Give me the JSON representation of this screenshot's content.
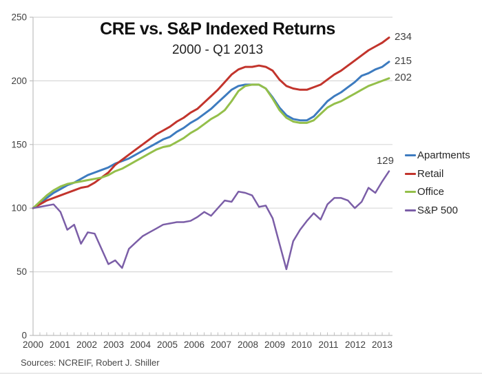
{
  "header": {
    "title": "CRE vs. S&P Indexed Returns",
    "subtitle": "2000 - Q1 2013"
  },
  "footer": {
    "source": "Sources: NCREIF, Robert J. Shiller"
  },
  "legend": {
    "position": "right",
    "items": [
      {
        "label": "Apartments",
        "color": "#3D7BBF"
      },
      {
        "label": "Retail",
        "color": "#C2342C"
      },
      {
        "label": "Office",
        "color": "#94BF4A"
      },
      {
        "label": "S&P 500",
        "color": "#7B5EA7"
      }
    ]
  },
  "end_labels": [
    {
      "series": "Retail",
      "value": "234"
    },
    {
      "series": "Apartments",
      "value": "215"
    },
    {
      "series": "Office",
      "value": "202"
    },
    {
      "series": "S&P 500",
      "value": "129"
    }
  ],
  "chart_data": {
    "type": "line",
    "title": "CRE vs. S&P Indexed Returns",
    "subtitle": "2000 - Q1 2013",
    "x_unit": "quarterly",
    "x_start": "2000 Q1",
    "x_end": "2013 Q1",
    "x_tick_labels": [
      "2000",
      "2001",
      "2002",
      "2003",
      "2004",
      "2005",
      "2006",
      "2007",
      "2008",
      "2009",
      "2010",
      "2011",
      "2012",
      "2013"
    ],
    "y_ticks": [
      0,
      50,
      100,
      150,
      200,
      250
    ],
    "ylim": [
      0,
      250
    ],
    "grid": true,
    "legend_position": "right",
    "series": [
      {
        "name": "Apartments",
        "color": "#3D7BBF",
        "width": 3,
        "values": [
          100,
          104,
          108,
          112,
          115,
          118,
          120,
          123,
          126,
          128,
          130,
          132,
          135,
          137,
          139,
          142,
          145,
          148,
          151,
          154,
          156,
          160,
          163,
          167,
          170,
          174,
          178,
          183,
          188,
          193,
          196,
          197,
          197,
          197,
          194,
          187,
          179,
          173,
          170,
          169,
          169,
          172,
          178,
          184,
          188,
          191,
          195,
          199,
          204,
          206,
          209,
          211,
          215
        ]
      },
      {
        "name": "Retail",
        "color": "#C2342C",
        "width": 3,
        "values": [
          100,
          103,
          106,
          108,
          110,
          112,
          114,
          116,
          117,
          120,
          124,
          128,
          134,
          138,
          142,
          146,
          150,
          154,
          158,
          161,
          164,
          168,
          171,
          175,
          178,
          183,
          188,
          193,
          199,
          205,
          209,
          211,
          211,
          212,
          211,
          208,
          201,
          196,
          194,
          193,
          193,
          195,
          197,
          201,
          205,
          208,
          212,
          216,
          220,
          224,
          227,
          230,
          234
        ]
      },
      {
        "name": "Office",
        "color": "#94BF4A",
        "width": 3,
        "values": [
          100,
          105,
          110,
          114,
          117,
          119,
          120,
          121,
          122,
          123,
          124,
          126,
          129,
          131,
          134,
          137,
          140,
          143,
          146,
          148,
          149,
          152,
          155,
          159,
          162,
          166,
          170,
          173,
          177,
          184,
          192,
          196,
          197,
          197,
          194,
          186,
          177,
          171,
          168,
          167,
          167,
          169,
          174,
          179,
          182,
          184,
          187,
          190,
          193,
          196,
          198,
          200,
          202
        ]
      },
      {
        "name": "S&P 500",
        "color": "#7B5EA7",
        "width": 2.5,
        "values": [
          100,
          101,
          102,
          103,
          97,
          83,
          87,
          72,
          81,
          80,
          68,
          56,
          59,
          53,
          68,
          73,
          78,
          81,
          84,
          87,
          88,
          89,
          89,
          90,
          93,
          97,
          94,
          100,
          106,
          105,
          113,
          112,
          110,
          101,
          102,
          92,
          72,
          52,
          74,
          83,
          90,
          96,
          91,
          103,
          108,
          108,
          106,
          100,
          105,
          116,
          112,
          121,
          129
        ]
      }
    ]
  }
}
